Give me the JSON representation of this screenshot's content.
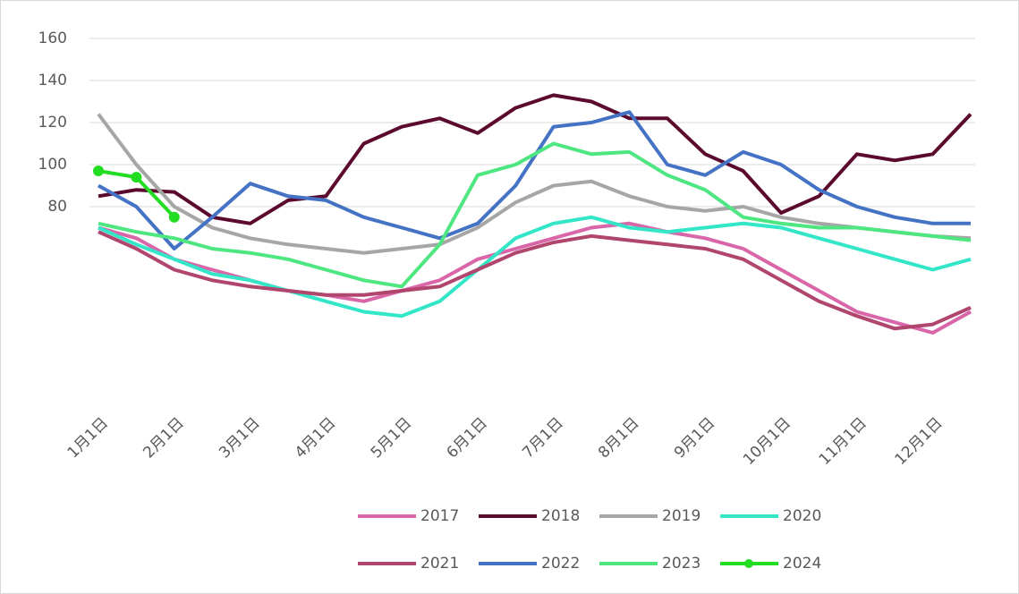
{
  "chart_data": {
    "type": "line",
    "categories": [
      "1月1日",
      null,
      "2月1日",
      null,
      "3月1日",
      null,
      "4月1日",
      null,
      "5月1日",
      null,
      "6月1日",
      null,
      "7月1日",
      null,
      "8月1日",
      null,
      "9月1日",
      null,
      "10月1日",
      null,
      "11月1日",
      null,
      "12月1日",
      null
    ],
    "series": [
      {
        "name": "2017",
        "color": "#d966a8",
        "values": [
          70,
          65,
          55,
          50,
          45,
          40,
          38,
          35,
          40,
          45,
          55,
          60,
          65,
          70,
          72,
          68,
          65,
          60,
          50,
          40,
          30,
          25,
          20,
          30
        ]
      },
      {
        "name": "2018",
        "color": "#5b0a2e",
        "values": [
          85,
          88,
          87,
          75,
          72,
          83,
          85,
          110,
          118,
          122,
          115,
          127,
          133,
          130,
          122,
          122,
          105,
          97,
          77,
          85,
          105,
          102,
          105,
          124
        ]
      },
      {
        "name": "2019",
        "color": "#a6a6a6",
        "values": [
          124,
          100,
          80,
          70,
          65,
          62,
          60,
          58,
          60,
          62,
          70,
          82,
          90,
          92,
          85,
          80,
          78,
          80,
          75,
          72,
          70,
          68,
          66,
          65
        ]
      },
      {
        "name": "2020",
        "color": "#33e6c8",
        "values": [
          70,
          62,
          55,
          48,
          45,
          40,
          35,
          30,
          28,
          35,
          50,
          65,
          72,
          75,
          70,
          68,
          70,
          72,
          70,
          65,
          60,
          55,
          50,
          55
        ]
      },
      {
        "name": "2021",
        "color": "#b0466e",
        "values": [
          68,
          60,
          50,
          45,
          42,
          40,
          38,
          38,
          40,
          42,
          50,
          58,
          63,
          66,
          64,
          62,
          60,
          55,
          45,
          35,
          28,
          22,
          24,
          32
        ]
      },
      {
        "name": "2022",
        "color": "#4472c4",
        "values": [
          90,
          80,
          60,
          75,
          91,
          85,
          83,
          75,
          70,
          65,
          72,
          90,
          118,
          120,
          125,
          100,
          95,
          106,
          100,
          88,
          80,
          75,
          72,
          72
        ]
      },
      {
        "name": "2023",
        "color": "#4de680",
        "values": [
          72,
          68,
          65,
          60,
          58,
          55,
          50,
          45,
          42,
          62,
          95,
          100,
          110,
          105,
          106,
          95,
          88,
          75,
          72,
          70,
          70,
          68,
          66,
          64
        ]
      },
      {
        "name": "2024",
        "color": "#22dd22",
        "marker": true,
        "values": [
          97,
          94,
          75,
          null,
          null,
          null,
          null,
          null,
          null,
          null,
          null,
          null,
          null,
          null,
          null,
          null,
          null,
          null,
          null,
          null,
          null,
          null,
          null,
          null
        ]
      }
    ],
    "ylim": [
      0,
      160
    ],
    "yticks": [
      80,
      100,
      120,
      140,
      160
    ],
    "grid": true
  }
}
